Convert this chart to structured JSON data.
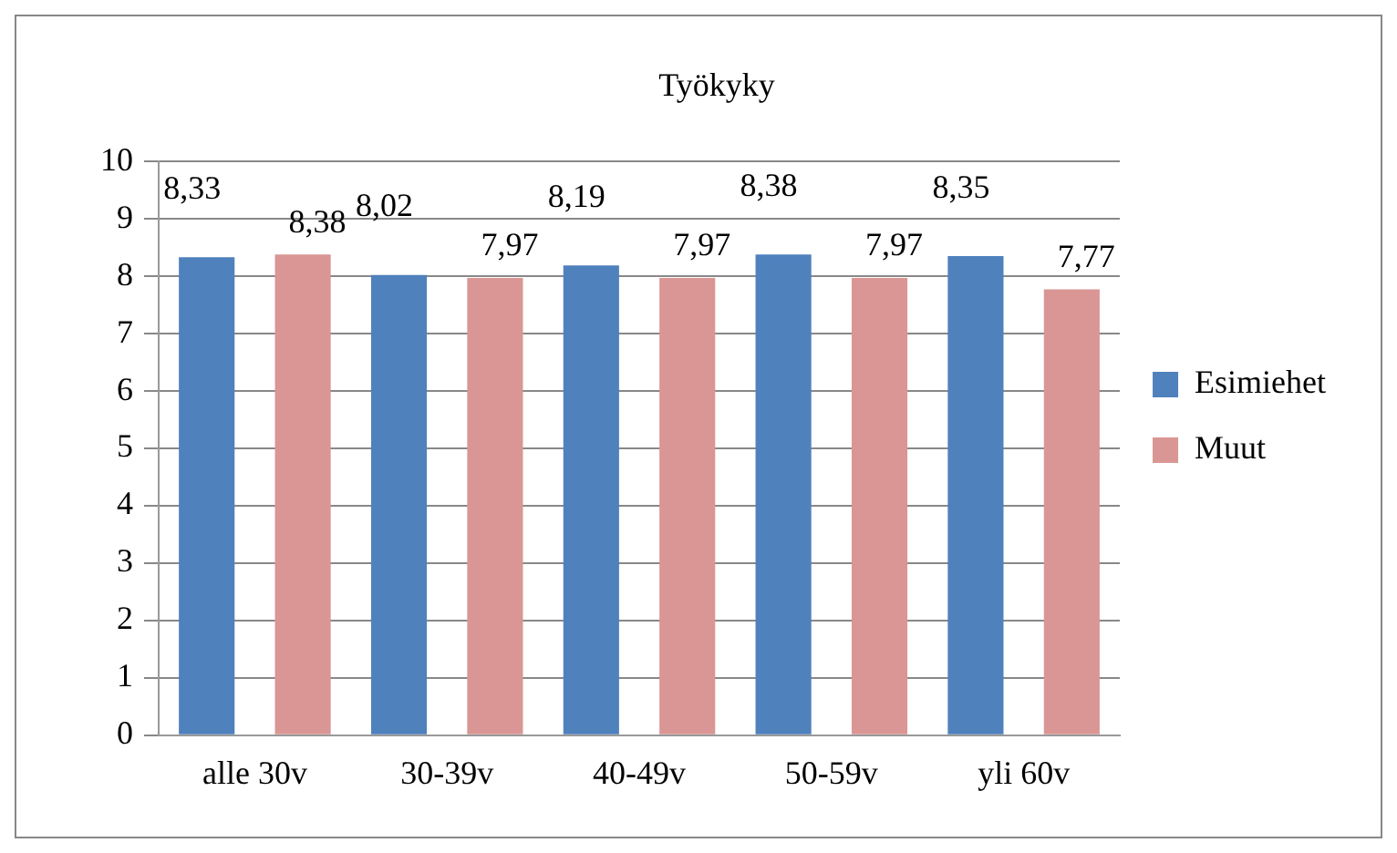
{
  "chart_data": {
    "type": "bar",
    "title": "Työkyky",
    "categories": [
      "alle 30v",
      "30-39v",
      "40-49v",
      "50-59v",
      "yli 60v"
    ],
    "series": [
      {
        "name": "Esimiehet",
        "color": "#4f81bd",
        "values": [
          8.33,
          8.02,
          8.19,
          8.38,
          8.35
        ],
        "value_labels": [
          "8,33",
          "8,02",
          "8,19",
          "8,38",
          "8,35"
        ]
      },
      {
        "name": "Muut",
        "color": "#d99694",
        "values": [
          8.38,
          7.97,
          7.97,
          7.97,
          7.77
        ],
        "value_labels": [
          "8,38",
          "7,97",
          "7,97",
          "7,97",
          "7,77"
        ]
      }
    ],
    "ylim": [
      0,
      10
    ],
    "yticks": [
      0,
      1,
      2,
      3,
      4,
      5,
      6,
      7,
      8,
      9,
      10
    ],
    "grid": "y",
    "legend": "right"
  }
}
